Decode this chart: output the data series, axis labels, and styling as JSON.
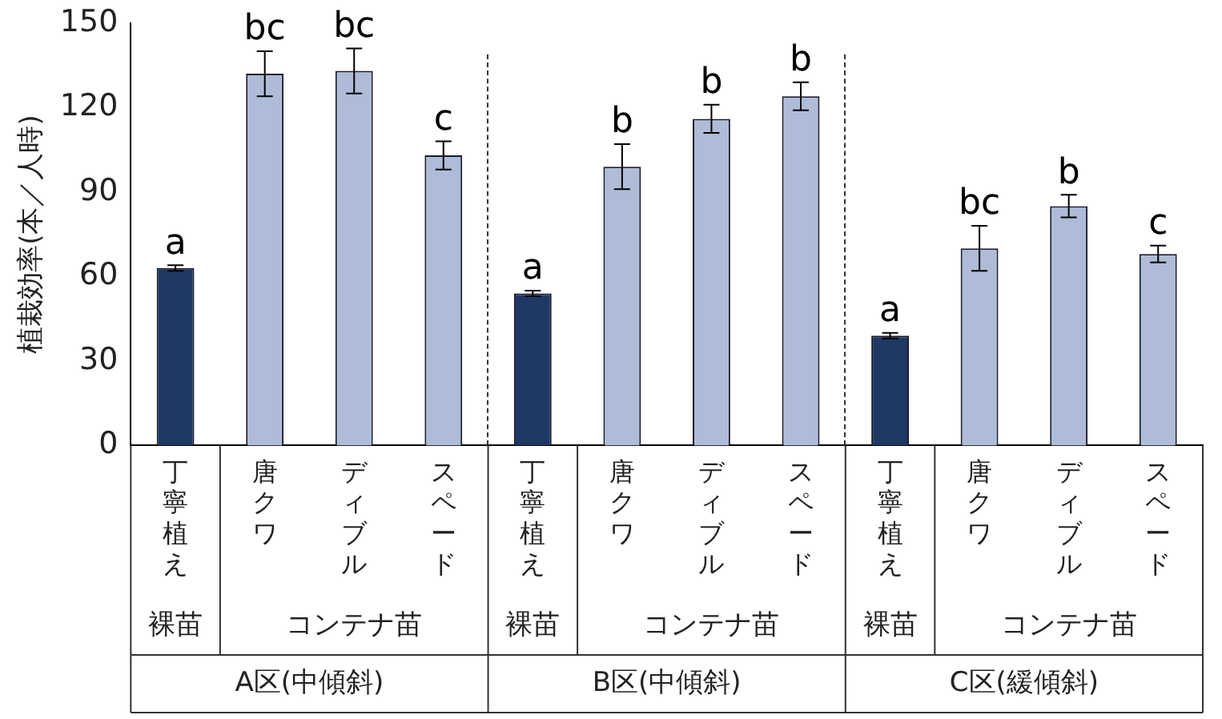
{
  "chart_data": {
    "type": "bar",
    "ylabel": "植栽効率(本／人時)",
    "categories": [
      "丁寧植え",
      "唐クワ",
      "ディブル",
      "スペード",
      "丁寧植え",
      "唐クワ",
      "ディブル",
      "スペード",
      "丁寧植え",
      "唐クワ",
      "ディブル",
      "スペード"
    ],
    "values": [
      63,
      132,
      133,
      103,
      54,
      99,
      116,
      124,
      39,
      70,
      85,
      68
    ],
    "errors": [
      1,
      8,
      8,
      5,
      1,
      8,
      5,
      5,
      1,
      8,
      4,
      3
    ],
    "value_labels": [
      "a",
      "bc",
      "bc",
      "c",
      "a",
      "b",
      "b",
      "b",
      "a",
      "bc",
      "b",
      "c"
    ],
    "colors": [
      "#1f3864",
      "#aebcd8",
      "#aebcd8",
      "#aebcd8",
      "#1f3864",
      "#aebcd8",
      "#aebcd8",
      "#aebcd8",
      "#1f3864",
      "#aebcd8",
      "#aebcd8",
      "#aebcd8"
    ],
    "annotations": [
      "裸苗",
      "コンテナ苗",
      "A区(中傾斜)",
      "裸苗",
      "コンテナ苗",
      "B区(中傾斜)",
      "裸苗",
      "コンテナ苗",
      "C区(緩傾斜)"
    ],
    "ylim": [
      0,
      150
    ],
    "yticks": [
      0,
      30,
      60,
      90,
      120,
      150
    ],
    "grid": false,
    "legend": false
  }
}
